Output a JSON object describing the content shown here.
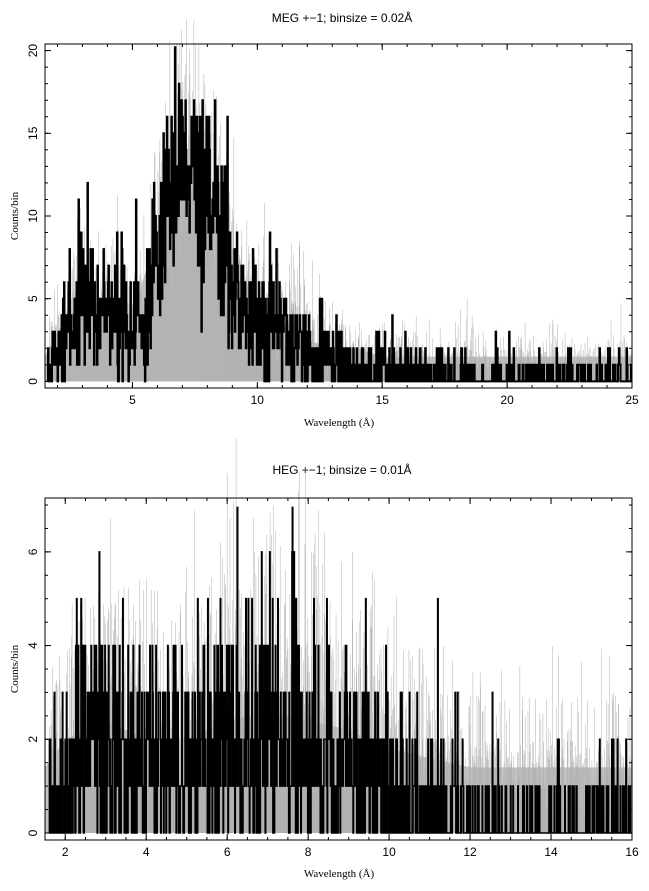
{
  "chart_data": [
    {
      "type": "line",
      "title": "MEG +−1; binsize = 0.02Å",
      "xlabel": "Wavelength (Å)",
      "ylabel": "Counts/bin",
      "xlim": [
        1.5,
        25
      ],
      "ylim": [
        -0.4,
        20.4
      ],
      "xticks": [
        5,
        10,
        15,
        20,
        25
      ],
      "yticks": [
        0,
        5,
        10,
        15,
        20
      ],
      "grid": false,
      "series": [
        {
          "role": "error-band",
          "color": "#b3b3b3",
          "x": [
            1.5,
            2,
            3,
            4,
            5,
            6,
            7,
            8,
            9,
            10,
            11,
            12,
            13,
            14,
            15,
            16,
            17,
            18,
            25
          ],
          "values": [
            1.5,
            3,
            5,
            4.5,
            4,
            9,
            12,
            11,
            7,
            5,
            3.5,
            2.5,
            2,
            2,
            1.5,
            1.5,
            1.5,
            1.5,
            1.5
          ]
        },
        {
          "role": "counts",
          "color": "#000000",
          "x": [
            1.6,
            2,
            2.5,
            3,
            3.5,
            4,
            4.5,
            5,
            5.5,
            6,
            6.5,
            7,
            7.5,
            8,
            8.5,
            9,
            9.5,
            10,
            10.5,
            11,
            11.5,
            12,
            12.5,
            13,
            13.5,
            14,
            15,
            16,
            17,
            18,
            19,
            20,
            21,
            22,
            23,
            24,
            25
          ],
          "values": [
            0.5,
            2,
            3.5,
            5,
            4.5,
            4,
            4,
            3.5,
            3,
            9,
            12,
            13,
            12,
            11,
            9,
            6,
            4.5,
            4,
            3.5,
            3,
            2.5,
            2,
            1.5,
            1,
            1,
            0.8,
            0.7,
            0.6,
            0.5,
            0.4,
            0.3,
            0.3,
            0.3,
            0.3,
            0.3,
            0.3,
            0.3
          ]
        }
      ]
    },
    {
      "type": "line",
      "title": "HEG +−1; binsize = 0.01Å",
      "xlabel": "Wavelength (Å)",
      "ylabel": "Counts/bin",
      "xlim": [
        1.5,
        16
      ],
      "ylim": [
        -0.15,
        7.15
      ],
      "xticks": [
        2,
        4,
        6,
        8,
        10,
        12,
        14,
        16
      ],
      "yticks": [
        0,
        2,
        4,
        6
      ],
      "grid": false,
      "series": [
        {
          "role": "error-band",
          "color": "#b3b3b3",
          "x": [
            1.5,
            2,
            3,
            4,
            5,
            6,
            7,
            8,
            9,
            10,
            11,
            12,
            13,
            14,
            15,
            16
          ],
          "values": [
            1.4,
            2,
            2.4,
            2,
            2,
            2.4,
            2.6,
            2.4,
            2.2,
            1.8,
            1.6,
            1.4,
            1.4,
            1.4,
            1.4,
            1.4
          ]
        },
        {
          "role": "counts",
          "color": "#000000",
          "x": [
            1.6,
            2,
            2.5,
            3,
            3.5,
            4,
            4.5,
            5,
            5.5,
            6,
            6.5,
            7,
            7.5,
            8,
            8.5,
            9,
            9.5,
            10,
            10.5,
            11,
            11.5,
            12,
            13,
            14,
            15,
            16
          ],
          "values": [
            0.6,
            1.2,
            1.6,
            1.8,
            1.7,
            1.5,
            1.4,
            1.4,
            1.6,
            1.9,
            2.1,
            2.2,
            2.0,
            1.9,
            1.7,
            1.5,
            1.2,
            1.0,
            0.8,
            0.7,
            0.5,
            0.4,
            0.3,
            0.3,
            0.3,
            0.3
          ]
        }
      ]
    }
  ]
}
